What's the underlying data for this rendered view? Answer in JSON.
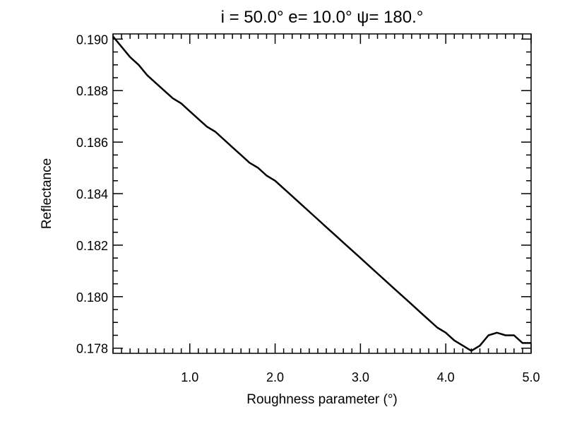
{
  "chart_data": {
    "type": "line",
    "title": "i = 50.0°   e= 10.0°   ψ= 180.°",
    "xlabel": "Roughness parameter (°)",
    "ylabel": "Reflectance",
    "xlim": [
      0.1,
      5.0
    ],
    "ylim": [
      0.1778,
      0.1902
    ],
    "x_ticks": [
      {
        "value": 1.0,
        "label": "1.0"
      },
      {
        "value": 2.0,
        "label": "2.0"
      },
      {
        "value": 3.0,
        "label": "3.0"
      },
      {
        "value": 4.0,
        "label": "4.0"
      },
      {
        "value": 5.0,
        "label": "5.0"
      }
    ],
    "y_ticks": [
      {
        "value": 0.178,
        "label": "0.178"
      },
      {
        "value": 0.18,
        "label": "0.180"
      },
      {
        "value": 0.182,
        "label": "0.182"
      },
      {
        "value": 0.184,
        "label": "0.184"
      },
      {
        "value": 0.186,
        "label": "0.186"
      },
      {
        "value": 0.188,
        "label": "0.188"
      },
      {
        "value": 0.19,
        "label": "0.190"
      }
    ],
    "x_minor_step": 0.1,
    "y_minor_step": 0.0005,
    "grid": false,
    "series": [
      {
        "color": "#000000",
        "x": [
          0.1,
          0.2,
          0.3,
          0.4,
          0.5,
          0.6,
          0.7,
          0.8,
          0.9,
          1.0,
          1.1,
          1.2,
          1.3,
          1.4,
          1.5,
          1.6,
          1.7,
          1.8,
          1.9,
          2.0,
          2.1,
          2.2,
          2.3,
          2.4,
          2.5,
          2.6,
          2.7,
          2.8,
          2.9,
          3.0,
          3.1,
          3.2,
          3.3,
          3.4,
          3.5,
          3.6,
          3.7,
          3.8,
          3.9,
          4.0,
          4.1,
          4.2,
          4.3,
          4.4,
          4.5,
          4.6,
          4.7,
          4.8,
          4.9,
          5.0
        ],
        "y": [
          0.1901,
          0.1897,
          0.1893,
          0.189,
          0.1886,
          0.1883,
          0.188,
          0.1877,
          0.1875,
          0.1872,
          0.1869,
          0.1866,
          0.1864,
          0.1861,
          0.1858,
          0.1855,
          0.1852,
          0.185,
          0.1847,
          0.1845,
          0.1842,
          0.1839,
          0.1836,
          0.1833,
          0.183,
          0.1827,
          0.1824,
          0.1821,
          0.1818,
          0.1815,
          0.1812,
          0.1809,
          0.1806,
          0.1803,
          0.18,
          0.1797,
          0.1794,
          0.1791,
          0.1788,
          0.1786,
          0.1783,
          0.1781,
          0.1779,
          0.1781,
          0.1785,
          0.1786,
          0.1785,
          0.1785,
          0.1782,
          0.1782
        ]
      }
    ]
  }
}
